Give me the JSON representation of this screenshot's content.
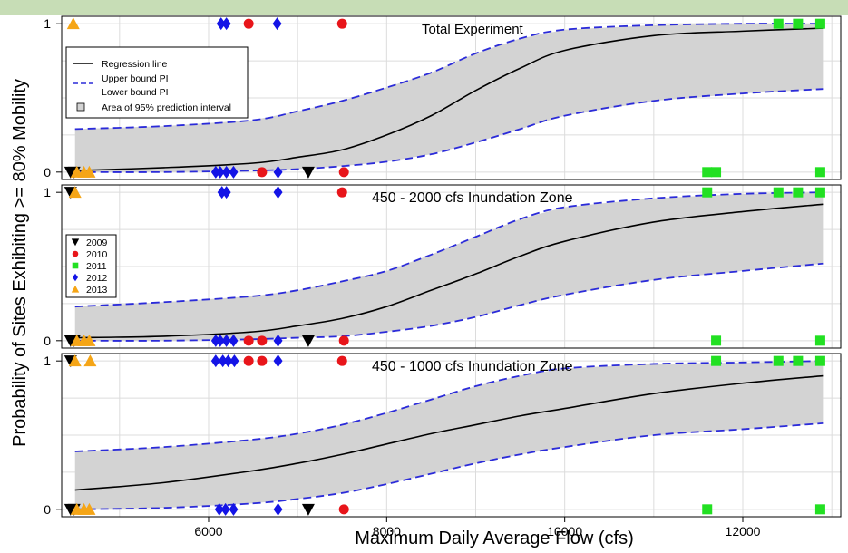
{
  "chart_data": {
    "type": "scatter",
    "xlabel": "Maximum Daily Average Flow (cfs)",
    "ylabel": "Probability of Sites Exhibiting >= 80% Mobility",
    "xlim": [
      4350,
      13100
    ],
    "ylim": [
      -0.05,
      1.05
    ],
    "x_ticks": [
      6000,
      8000,
      10000,
      12000
    ],
    "y_ticks": [
      0,
      1
    ],
    "grid": true,
    "colors": {
      "2009": "#000000",
      "2010": "#e8151a",
      "2011": "#22e022",
      "2012": "#1414e6",
      "2013": "#f5a516",
      "regression": "#000000",
      "bounds": "#2b2bd9",
      "band": "#d3d3d3"
    },
    "legend_lines": {
      "placement": "top-left of first panel",
      "entries": [
        {
          "label": "Regression line",
          "style": "solid"
        },
        {
          "label": "Upper bound PI",
          "style": "dashed"
        },
        {
          "label": "Lower bound PI",
          "style": "none"
        },
        {
          "label": "Area of 95% prediction interval",
          "style": "box"
        }
      ]
    },
    "legend_years": {
      "placement": "left of second panel",
      "entries": [
        {
          "label": "2009",
          "marker": "triangle-down"
        },
        {
          "label": "2010",
          "marker": "circle"
        },
        {
          "label": "2011",
          "marker": "square"
        },
        {
          "label": "2012",
          "marker": "diamond"
        },
        {
          "label": "2013",
          "marker": "triangle-up"
        }
      ]
    },
    "panels": [
      {
        "title": "Total Experiment",
        "curve": {
          "x": [
            4500,
            5500,
            6500,
            7000,
            7500,
            8000,
            8500,
            9000,
            9500,
            10000,
            11000,
            12000,
            12900
          ],
          "fit": [
            0.01,
            0.03,
            0.06,
            0.1,
            0.15,
            0.25,
            0.38,
            0.55,
            0.7,
            0.82,
            0.92,
            0.95,
            0.97
          ],
          "upper": [
            0.29,
            0.31,
            0.35,
            0.41,
            0.48,
            0.57,
            0.67,
            0.8,
            0.9,
            0.96,
            0.99,
            1.0,
            1.0
          ],
          "lower": [
            0.0,
            0.0,
            0.01,
            0.02,
            0.04,
            0.07,
            0.12,
            0.2,
            0.29,
            0.38,
            0.48,
            0.53,
            0.56
          ]
        },
        "points": [
          {
            "year": "2013",
            "x": 4480,
            "y": 1
          },
          {
            "year": "2012",
            "x": 6140,
            "y": 1
          },
          {
            "year": "2012",
            "x": 6200,
            "y": 1
          },
          {
            "year": "2010",
            "x": 6450,
            "y": 1
          },
          {
            "year": "2012",
            "x": 6770,
            "y": 1
          },
          {
            "year": "2010",
            "x": 7500,
            "y": 1
          },
          {
            "year": "2011",
            "x": 12400,
            "y": 1
          },
          {
            "year": "2011",
            "x": 12620,
            "y": 1
          },
          {
            "year": "2011",
            "x": 12870,
            "y": 1
          },
          {
            "year": "2009",
            "x": 4450,
            "y": 0
          },
          {
            "year": "2009",
            "x": 4490,
            "y": 0
          },
          {
            "year": "2013",
            "x": 4520,
            "y": 0
          },
          {
            "year": "2013",
            "x": 4600,
            "y": 0
          },
          {
            "year": "2013",
            "x": 4660,
            "y": 0
          },
          {
            "year": "2012",
            "x": 6080,
            "y": 0
          },
          {
            "year": "2012",
            "x": 6130,
            "y": 0
          },
          {
            "year": "2012",
            "x": 6200,
            "y": 0
          },
          {
            "year": "2012",
            "x": 6280,
            "y": 0
          },
          {
            "year": "2010",
            "x": 6600,
            "y": 0
          },
          {
            "year": "2012",
            "x": 6780,
            "y": 0
          },
          {
            "year": "2009",
            "x": 7120,
            "y": 0
          },
          {
            "year": "2010",
            "x": 7520,
            "y": 0
          },
          {
            "year": "2011",
            "x": 11600,
            "y": 0
          },
          {
            "year": "2011",
            "x": 11700,
            "y": 0
          },
          {
            "year": "2011",
            "x": 12870,
            "y": 0
          }
        ]
      },
      {
        "title": "450 - 2000 cfs Inundation Zone",
        "curve": {
          "x": [
            4500,
            5500,
            6500,
            7000,
            7500,
            8000,
            8500,
            9000,
            9500,
            10000,
            11000,
            12000,
            12900
          ],
          "fit": [
            0.02,
            0.03,
            0.06,
            0.1,
            0.15,
            0.23,
            0.34,
            0.45,
            0.57,
            0.67,
            0.8,
            0.87,
            0.92
          ],
          "upper": [
            0.23,
            0.26,
            0.3,
            0.34,
            0.4,
            0.47,
            0.58,
            0.7,
            0.82,
            0.9,
            0.96,
            0.99,
            1.0
          ],
          "lower": [
            0.0,
            0.0,
            0.01,
            0.02,
            0.03,
            0.06,
            0.1,
            0.16,
            0.24,
            0.31,
            0.41,
            0.47,
            0.52
          ]
        },
        "points": [
          {
            "year": "2009",
            "x": 4450,
            "y": 1
          },
          {
            "year": "2013",
            "x": 4500,
            "y": 1
          },
          {
            "year": "2012",
            "x": 6150,
            "y": 1
          },
          {
            "year": "2012",
            "x": 6200,
            "y": 1
          },
          {
            "year": "2012",
            "x": 6780,
            "y": 1
          },
          {
            "year": "2010",
            "x": 7500,
            "y": 1
          },
          {
            "year": "2011",
            "x": 11600,
            "y": 1
          },
          {
            "year": "2011",
            "x": 12400,
            "y": 1
          },
          {
            "year": "2011",
            "x": 12620,
            "y": 1
          },
          {
            "year": "2011",
            "x": 12870,
            "y": 1
          },
          {
            "year": "2009",
            "x": 4450,
            "y": 0
          },
          {
            "year": "2009",
            "x": 4490,
            "y": 0
          },
          {
            "year": "2013",
            "x": 4520,
            "y": 0
          },
          {
            "year": "2013",
            "x": 4600,
            "y": 0
          },
          {
            "year": "2013",
            "x": 4660,
            "y": 0
          },
          {
            "year": "2012",
            "x": 6080,
            "y": 0
          },
          {
            "year": "2012",
            "x": 6130,
            "y": 0
          },
          {
            "year": "2012",
            "x": 6200,
            "y": 0
          },
          {
            "year": "2012",
            "x": 6280,
            "y": 0
          },
          {
            "year": "2010",
            "x": 6450,
            "y": 0
          },
          {
            "year": "2010",
            "x": 6600,
            "y": 0
          },
          {
            "year": "2012",
            "x": 6780,
            "y": 0
          },
          {
            "year": "2009",
            "x": 7120,
            "y": 0
          },
          {
            "year": "2010",
            "x": 7520,
            "y": 0
          },
          {
            "year": "2011",
            "x": 11700,
            "y": 0
          },
          {
            "year": "2011",
            "x": 12870,
            "y": 0
          }
        ]
      },
      {
        "title": "450 - 1000 cfs Inundation Zone",
        "curve": {
          "x": [
            4500,
            5500,
            6500,
            7000,
            7500,
            8000,
            8500,
            9000,
            9500,
            10000,
            11000,
            12000,
            12900
          ],
          "fit": [
            0.13,
            0.18,
            0.26,
            0.31,
            0.37,
            0.44,
            0.51,
            0.57,
            0.63,
            0.68,
            0.78,
            0.85,
            0.9
          ],
          "upper": [
            0.39,
            0.42,
            0.47,
            0.51,
            0.57,
            0.65,
            0.74,
            0.83,
            0.9,
            0.95,
            0.98,
            0.99,
            1.0
          ],
          "lower": [
            0.0,
            0.01,
            0.04,
            0.07,
            0.11,
            0.17,
            0.24,
            0.31,
            0.37,
            0.42,
            0.5,
            0.54,
            0.58
          ]
        },
        "points": [
          {
            "year": "2009",
            "x": 4450,
            "y": 1
          },
          {
            "year": "2013",
            "x": 4500,
            "y": 1
          },
          {
            "year": "2013",
            "x": 4670,
            "y": 1
          },
          {
            "year": "2012",
            "x": 6080,
            "y": 1
          },
          {
            "year": "2012",
            "x": 6160,
            "y": 1
          },
          {
            "year": "2012",
            "x": 6220,
            "y": 1
          },
          {
            "year": "2012",
            "x": 6290,
            "y": 1
          },
          {
            "year": "2010",
            "x": 6450,
            "y": 1
          },
          {
            "year": "2010",
            "x": 6600,
            "y": 1
          },
          {
            "year": "2012",
            "x": 6780,
            "y": 1
          },
          {
            "year": "2010",
            "x": 7500,
            "y": 1
          },
          {
            "year": "2011",
            "x": 11700,
            "y": 1
          },
          {
            "year": "2011",
            "x": 12400,
            "y": 1
          },
          {
            "year": "2011",
            "x": 12620,
            "y": 1
          },
          {
            "year": "2011",
            "x": 12870,
            "y": 1
          },
          {
            "year": "2009",
            "x": 4450,
            "y": 0
          },
          {
            "year": "2009",
            "x": 4490,
            "y": 0
          },
          {
            "year": "2013",
            "x": 4520,
            "y": 0
          },
          {
            "year": "2013",
            "x": 4600,
            "y": 0
          },
          {
            "year": "2013",
            "x": 4660,
            "y": 0
          },
          {
            "year": "2012",
            "x": 6120,
            "y": 0
          },
          {
            "year": "2012",
            "x": 6190,
            "y": 0
          },
          {
            "year": "2012",
            "x": 6280,
            "y": 0
          },
          {
            "year": "2012",
            "x": 6780,
            "y": 0
          },
          {
            "year": "2009",
            "x": 7120,
            "y": 0
          },
          {
            "year": "2010",
            "x": 7520,
            "y": 0
          },
          {
            "year": "2011",
            "x": 11600,
            "y": 0
          },
          {
            "year": "2011",
            "x": 12870,
            "y": 0
          }
        ]
      }
    ]
  }
}
